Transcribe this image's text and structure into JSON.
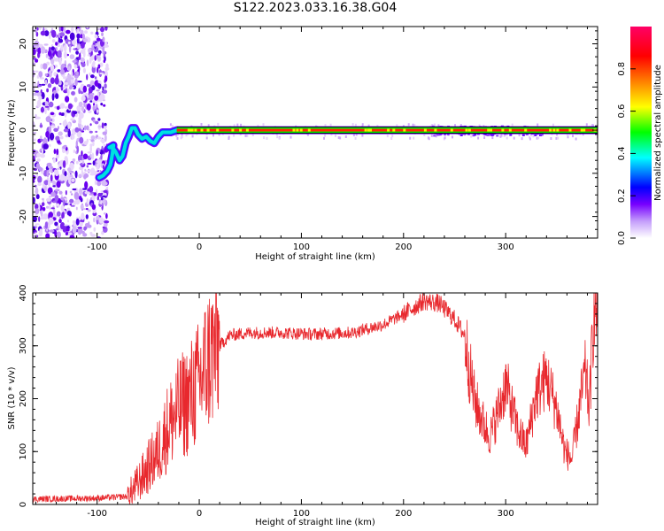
{
  "title": "S122.2023.033.16.38.G04",
  "colors": {
    "axis": "#000000",
    "snr_line": "#e8282d",
    "colormap": [
      "#ffffff",
      "#e6d0fa",
      "#7700ff",
      "#0000ff",
      "#00ffff",
      "#00ff00",
      "#ffff00",
      "#ff8000",
      "#ff0000",
      "#ff0066"
    ]
  },
  "chart_data": [
    {
      "type": "heatmap",
      "name": "spectrogram",
      "xlabel": "Height of straight line (km)",
      "ylabel": "Frequency (Hz)",
      "xlim": [
        -163,
        390
      ],
      "ylim": [
        -25,
        24
      ],
      "x_ticks": [
        -100,
        0,
        100,
        200,
        300
      ],
      "y_ticks": [
        -20,
        -10,
        0,
        10,
        20
      ],
      "grid": false,
      "colorbar": {
        "label": "Normalized spectral amplitude",
        "range": [
          0.0,
          1.0
        ],
        "ticks": [
          "0.0",
          "0.2",
          "0.4",
          "0.6",
          "0.8"
        ]
      },
      "noise_region": {
        "x_range": [
          -163,
          -90
        ],
        "y_range": [
          -25,
          24
        ]
      },
      "peak_track": [
        [
          -98,
          -11
        ],
        [
          -94,
          -10.5
        ],
        [
          -90,
          -9.5
        ],
        [
          -87,
          -8
        ],
        [
          -85,
          -5.5
        ],
        [
          -84,
          -3.5
        ],
        [
          -88,
          -4
        ],
        [
          -85,
          -4
        ],
        [
          -82,
          -5
        ],
        [
          -78,
          -7
        ],
        [
          -75,
          -6
        ],
        [
          -72,
          -3
        ],
        [
          -69,
          -1.5
        ],
        [
          -66,
          0.5
        ],
        [
          -63,
          0.5
        ],
        [
          -60,
          -1
        ],
        [
          -56,
          -2
        ],
        [
          -52,
          -1.5
        ],
        [
          -48,
          -2.5
        ],
        [
          -44,
          -3
        ],
        [
          -40,
          -1.5
        ],
        [
          -36,
          -0.5
        ],
        [
          -28,
          -0.5
        ],
        [
          -22,
          0
        ],
        [
          -15,
          0
        ],
        [
          390,
          0
        ]
      ]
    },
    {
      "type": "line",
      "name": "snr",
      "xlabel": "Height of straight line (km)",
      "ylabel": "SNR (10 * v/v)",
      "xlim": [
        -163,
        390
      ],
      "ylim": [
        0,
        400
      ],
      "x_ticks": [
        -100,
        0,
        100,
        200,
        300
      ],
      "y_ticks": [
        0,
        100,
        200,
        300,
        400
      ],
      "grid": false,
      "envelope": [
        [
          -163,
          10
        ],
        [
          -100,
          12
        ],
        [
          -70,
          15
        ],
        [
          -60,
          40
        ],
        [
          -50,
          70
        ],
        [
          -40,
          100
        ],
        [
          -30,
          150
        ],
        [
          -20,
          180
        ],
        [
          -10,
          200
        ],
        [
          0,
          230
        ],
        [
          10,
          280
        ],
        [
          20,
          300
        ],
        [
          30,
          320
        ],
        [
          50,
          325
        ],
        [
          80,
          325
        ],
        [
          110,
          322
        ],
        [
          150,
          325
        ],
        [
          180,
          340
        ],
        [
          200,
          360
        ],
        [
          220,
          385
        ],
        [
          235,
          380
        ],
        [
          250,
          350
        ],
        [
          260,
          320
        ],
        [
          265,
          250
        ],
        [
          270,
          195
        ],
        [
          280,
          145
        ],
        [
          285,
          130
        ],
        [
          295,
          190
        ],
        [
          300,
          230
        ],
        [
          305,
          190
        ],
        [
          312,
          140
        ],
        [
          320,
          110
        ],
        [
          330,
          210
        ],
        [
          340,
          240
        ],
        [
          350,
          180
        ],
        [
          358,
          100
        ],
        [
          365,
          85
        ],
        [
          372,
          180
        ],
        [
          378,
          250
        ],
        [
          382,
          180
        ],
        [
          386,
          360
        ],
        [
          390,
          370
        ]
      ]
    }
  ]
}
